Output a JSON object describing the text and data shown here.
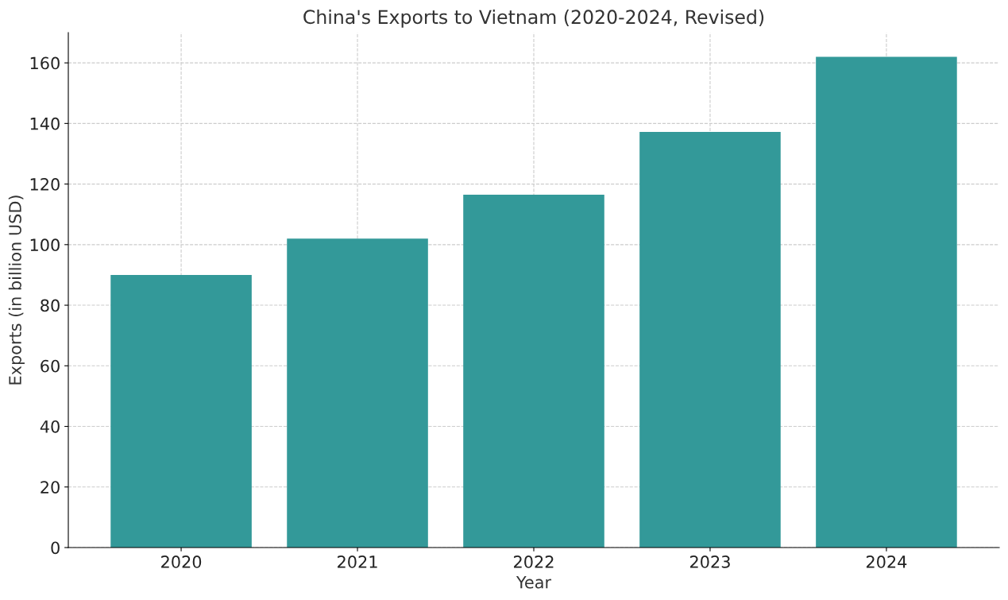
{
  "chart_data": {
    "type": "bar",
    "title": "China's Exports to Vietnam (2020-2024, Revised)",
    "xlabel": "Year",
    "ylabel": "Exports (in billion USD)",
    "categories": [
      "2020",
      "2021",
      "2022",
      "2023",
      "2024"
    ],
    "values": [
      90,
      102,
      116.5,
      137.2,
      162
    ],
    "color": "#339999",
    "ylim": [
      0,
      170
    ],
    "yticks": [
      0,
      20,
      40,
      60,
      80,
      100,
      120,
      140,
      160
    ],
    "grid": true,
    "line_style": "dashed"
  }
}
